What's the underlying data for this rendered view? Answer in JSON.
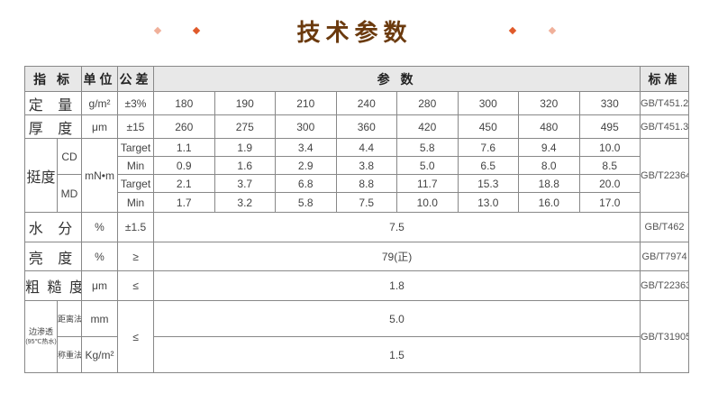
{
  "title": "技术参数",
  "colors": {
    "title": "#6b3a0e",
    "diamond_dark": "#e05a2a",
    "diamond_light": "#f0b09a",
    "header_bg": "#e8e8e8"
  },
  "header": {
    "index": "指 标",
    "unit": "单位",
    "tolerance": "公差",
    "params": "参 数",
    "standard": "标准"
  },
  "rows": {
    "basis_weight": {
      "label": "定 量",
      "unit": "g/m²",
      "tol": "±3%",
      "values": [
        "180",
        "190",
        "210",
        "240",
        "280",
        "300",
        "320",
        "330"
      ],
      "std": "GB/T451.2"
    },
    "thickness": {
      "label": "厚 度",
      "unit": "μm",
      "tol": "±15",
      "values": [
        "260",
        "275",
        "300",
        "360",
        "420",
        "450",
        "480",
        "495"
      ],
      "std": "GB/T451.3"
    },
    "stiffness": {
      "label": "挺度",
      "unit": "mN•m",
      "std": "GB/T22364",
      "cd": {
        "label": "CD",
        "target_label": "Target",
        "min_label": "Min",
        "target": [
          "1.1",
          "1.9",
          "3.4",
          "4.4",
          "5.8",
          "7.6",
          "9.4",
          "10.0"
        ],
        "min": [
          "0.9",
          "1.6",
          "2.9",
          "3.8",
          "5.0",
          "6.5",
          "8.0",
          "8.5"
        ]
      },
      "md": {
        "label": "MD",
        "target_label": "Target",
        "min_label": "Min",
        "target": [
          "2.1",
          "3.7",
          "6.8",
          "8.8",
          "11.7",
          "15.3",
          "18.8",
          "20.0"
        ],
        "min": [
          "1.7",
          "3.2",
          "5.8",
          "7.5",
          "10.0",
          "13.0",
          "16.0",
          "17.0"
        ]
      }
    },
    "moisture": {
      "label": "水 分",
      "unit": "%",
      "tol": "±1.5",
      "value": "7.5",
      "std": "GB/T462"
    },
    "brightness": {
      "label": "亮 度",
      "unit": "%",
      "tol": "≥",
      "value": "79(正)",
      "std": "GB/T7974"
    },
    "roughness": {
      "label": "粗 糙 度",
      "unit": "μm",
      "tol": "≤",
      "value": "1.8",
      "std": "GB/T22363"
    },
    "edge_wicking": {
      "label": "边渗透",
      "sublabel": "(95℃热水)",
      "tol": "≤",
      "std": "GB/T31905",
      "distance": {
        "label": "距离法",
        "unit": "mm",
        "value": "5.0"
      },
      "weight": {
        "label": "称重法",
        "unit": "Kg/m²",
        "value": "1.5"
      }
    }
  }
}
